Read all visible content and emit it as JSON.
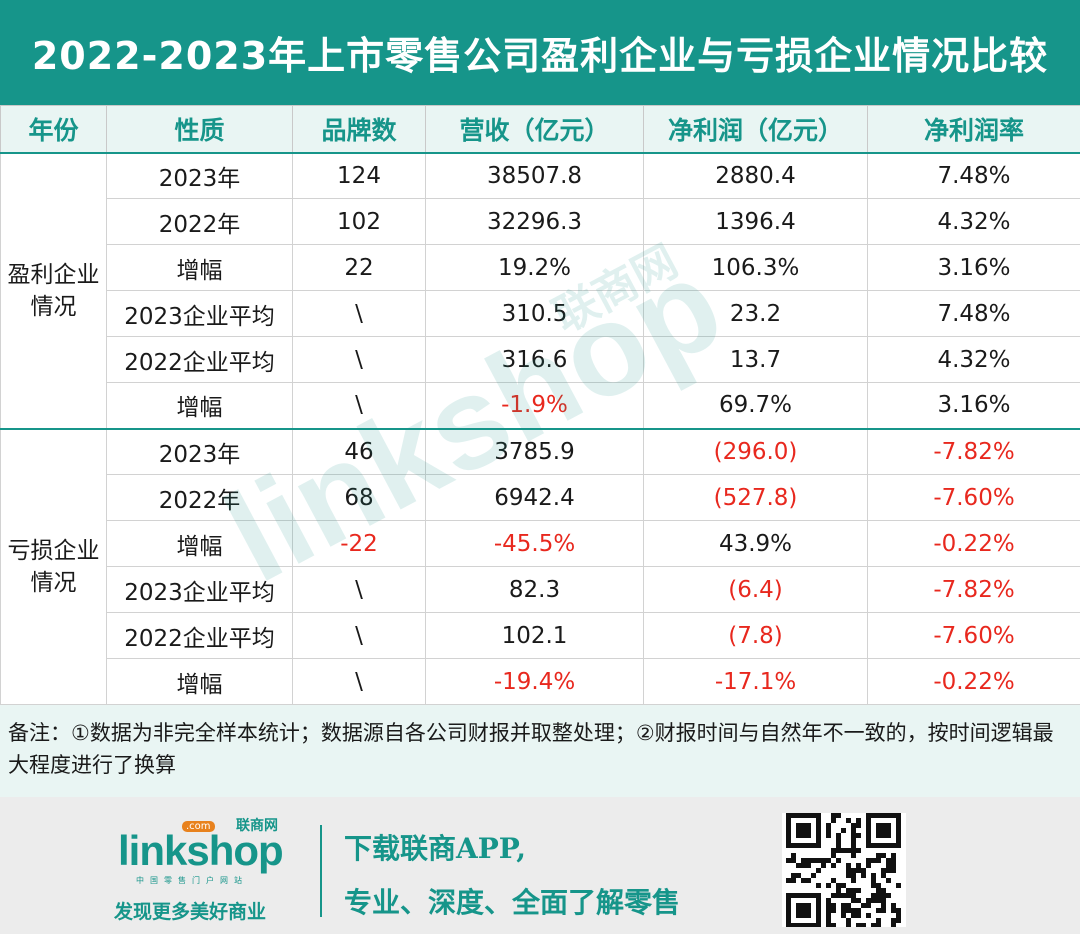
{
  "title": "2022-2023年上市零售公司盈利企业与亏损企业情况比较",
  "table": {
    "headers": [
      "年份",
      "性质",
      "品牌数",
      "营收（亿元）",
      "净利润（亿元）",
      "净利润率"
    ],
    "groups": [
      {
        "label": "盈利企业情况",
        "rows": [
          {
            "nature": "2023年",
            "brands": "124",
            "revenue": "38507.8",
            "profit": "2880.4",
            "margin": "7.48%"
          },
          {
            "nature": "2022年",
            "brands": "102",
            "revenue": "32296.3",
            "profit": "1396.4",
            "margin": "4.32%"
          },
          {
            "nature": "增幅",
            "brands": "22",
            "revenue": "19.2%",
            "profit": "106.3%",
            "margin": "3.16%"
          },
          {
            "nature": "2023企业平均",
            "brands": "\\",
            "revenue": "310.5",
            "profit": "23.2",
            "margin": "7.48%"
          },
          {
            "nature": "2022企业平均",
            "brands": "\\",
            "revenue": "316.6",
            "profit": "13.7",
            "margin": "4.32%"
          },
          {
            "nature": "增幅",
            "brands": "\\",
            "revenue": "-1.9%",
            "profit": "69.7%",
            "margin": "3.16%"
          }
        ]
      },
      {
        "label": "亏损企业情况",
        "rows": [
          {
            "nature": "2023年",
            "brands": "46",
            "revenue": "3785.9",
            "profit": "(296.0)",
            "margin": "-7.82%"
          },
          {
            "nature": "2022年",
            "brands": "68",
            "revenue": "6942.4",
            "profit": "(527.8)",
            "margin": "-7.60%"
          },
          {
            "nature": "增幅",
            "brands": "-22",
            "revenue": "-45.5%",
            "profit": "43.9%",
            "margin": "-0.22%"
          },
          {
            "nature": "2023企业平均",
            "brands": "\\",
            "revenue": "82.3",
            "profit": "(6.4)",
            "margin": "-7.82%"
          },
          {
            "nature": "2022企业平均",
            "brands": "\\",
            "revenue": "102.1",
            "profit": "(7.8)",
            "margin": "-7.60%"
          },
          {
            "nature": "增幅",
            "brands": "\\",
            "revenue": "-19.4%",
            "profit": "-17.1%",
            "margin": "-0.22%"
          }
        ]
      }
    ]
  },
  "note": "备注：①数据为非完全样本统计；数据源自各公司财报并取整处理；②财报时间与自然年不一致的，按时间逻辑最大程度进行了换算",
  "footer": {
    "logo_word": "linkshop",
    "logo_cn": "联商网",
    "logo_com": ".com",
    "logo_sub": "中国零售门户网站",
    "slogan": "发现更多美好商业",
    "promo_line1": "下载联商APP,",
    "promo_line2": "专业、深度、全面了解零售"
  },
  "watermark": {
    "word": "linkshop",
    "cn": "联商网"
  },
  "colors": {
    "accent": "#16958a",
    "header_bg": "#e9f5f3",
    "negative": "#e8281e"
  }
}
